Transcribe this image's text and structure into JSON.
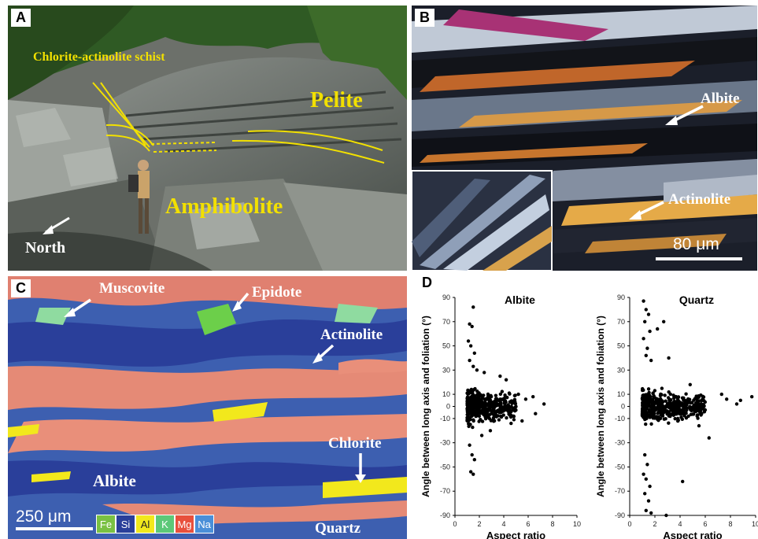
{
  "panels": {
    "A": {
      "label": "A",
      "annotations": {
        "schist": "Chlorite-actinolite schist",
        "pelite": "Pelite",
        "amphibolite": "Amphibolite",
        "north": "North"
      }
    },
    "B": {
      "label": "B",
      "annotations": {
        "albite": "Albite",
        "actinolite": "Actinolite"
      },
      "scale_bar": "80 μm"
    },
    "C": {
      "label": "C",
      "annotations": {
        "muscovite": "Muscovite",
        "epidote": "Epidote",
        "actinolite": "Actinolite",
        "chlorite": "Chlorite",
        "albite": "Albite",
        "quartz": "Quartz"
      },
      "scale_bar": "250 μm",
      "legend": [
        {
          "label": "Fe",
          "color": "#7ac143"
        },
        {
          "label": "Si",
          "color": "#2a3f9a"
        },
        {
          "label": "Al",
          "color": "#f2e81c"
        },
        {
          "label": "K",
          "color": "#5cc878"
        },
        {
          "label": "Mg",
          "color": "#e8503c"
        },
        {
          "label": "Na",
          "color": "#4a8fd8"
        }
      ]
    },
    "D": {
      "label": "D"
    }
  },
  "chart_data": [
    {
      "type": "scatter",
      "title": "Albite",
      "xlabel": "Aspect ratio",
      "ylabel": "Angle between long axis and foliation (°)",
      "xlim": [
        0,
        10
      ],
      "ylim": [
        -90,
        90
      ],
      "xticks": [
        0,
        2,
        4,
        6,
        8,
        10
      ],
      "yticks": [
        90,
        70,
        50,
        30,
        10,
        0,
        -10,
        -30,
        -50,
        -70,
        -90
      ],
      "points": [
        [
          1.5,
          82
        ],
        [
          1.2,
          68
        ],
        [
          1.4,
          66
        ],
        [
          1.1,
          54
        ],
        [
          1.3,
          50
        ],
        [
          1.6,
          44
        ],
        [
          1.2,
          38
        ],
        [
          1.5,
          33
        ],
        [
          1.8,
          30
        ],
        [
          2.4,
          28
        ],
        [
          1.2,
          -32
        ],
        [
          1.4,
          -40
        ],
        [
          1.6,
          -44
        ],
        [
          1.3,
          -54
        ],
        [
          1.5,
          -56
        ],
        [
          5.2,
          10
        ],
        [
          5.8,
          6
        ],
        [
          6.4,
          8
        ],
        [
          6.6,
          -6
        ],
        [
          7.3,
          2
        ],
        [
          5.5,
          -12
        ],
        [
          4.6,
          -14
        ],
        [
          4.2,
          22
        ],
        [
          3.7,
          25
        ],
        [
          2.9,
          -20
        ],
        [
          2.2,
          -24
        ]
      ],
      "cluster": {
        "x_range": [
          1.0,
          5.0
        ],
        "y_center": 0,
        "y_spread": 20,
        "count": 420,
        "seed": 11
      }
    },
    {
      "type": "scatter",
      "title": "Quartz",
      "xlabel": "Aspect ratio",
      "ylabel": "Angle between long axis and foliation (°)",
      "xlim": [
        0,
        10
      ],
      "ylim": [
        -90,
        90
      ],
      "xticks": [
        0,
        2,
        4,
        6,
        8,
        10
      ],
      "yticks": [
        90,
        70,
        50,
        30,
        10,
        0,
        -10,
        -30,
        -50,
        -70,
        -90
      ],
      "points": [
        [
          1.1,
          87
        ],
        [
          1.3,
          80
        ],
        [
          1.5,
          76
        ],
        [
          1.2,
          70
        ],
        [
          1.6,
          62
        ],
        [
          1.1,
          56
        ],
        [
          1.4,
          48
        ],
        [
          1.3,
          42
        ],
        [
          2.7,
          70
        ],
        [
          2.2,
          64
        ],
        [
          1.7,
          38
        ],
        [
          1.2,
          -40
        ],
        [
          1.4,
          -48
        ],
        [
          1.1,
          -56
        ],
        [
          1.3,
          -60
        ],
        [
          1.6,
          -66
        ],
        [
          1.2,
          -72
        ],
        [
          1.5,
          -78
        ],
        [
          1.3,
          -86
        ],
        [
          1.7,
          -88
        ],
        [
          2.9,
          -90
        ],
        [
          4.2,
          -62
        ],
        [
          7.3,
          10
        ],
        [
          7.7,
          6
        ],
        [
          8.5,
          2
        ],
        [
          8.8,
          5
        ],
        [
          9.7,
          8
        ],
        [
          6.3,
          -26
        ],
        [
          5.5,
          -16
        ],
        [
          4.8,
          18
        ],
        [
          3.1,
          40
        ]
      ],
      "cluster": {
        "x_range": [
          1.0,
          6.0
        ],
        "y_center": 0,
        "y_spread": 18,
        "count": 480,
        "seed": 29
      }
    }
  ]
}
